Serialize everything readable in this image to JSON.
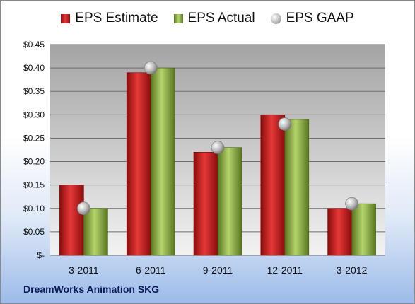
{
  "chart_data": {
    "type": "bar",
    "categories": [
      "3-2011",
      "6-2011",
      "9-2011",
      "12-2011",
      "3-2012"
    ],
    "series": [
      {
        "name": "EPS Estimate",
        "kind": "bar",
        "color": "#d42020",
        "values": [
          0.15,
          0.39,
          0.22,
          0.3,
          0.1
        ]
      },
      {
        "name": "EPS Actual",
        "kind": "bar",
        "color": "#8db23e",
        "values": [
          0.1,
          0.4,
          0.23,
          0.29,
          0.11
        ]
      },
      {
        "name": "EPS GAAP",
        "kind": "marker",
        "color": "#b0b0b0",
        "values": [
          0.1,
          0.4,
          0.23,
          0.28,
          0.11
        ]
      }
    ],
    "ylim": [
      0,
      0.45
    ],
    "yticks": [
      0,
      0.05,
      0.1,
      0.15,
      0.2,
      0.25,
      0.3,
      0.35,
      0.4,
      0.45
    ],
    "ytick_labels": [
      "$-",
      "$0.05",
      "$0.10",
      "$0.15",
      "$0.20",
      "$0.25",
      "$0.30",
      "$0.35",
      "$0.40",
      "$0.45"
    ],
    "grid": true,
    "legend_position": "top",
    "company": "DreamWorks Animation SKG"
  }
}
